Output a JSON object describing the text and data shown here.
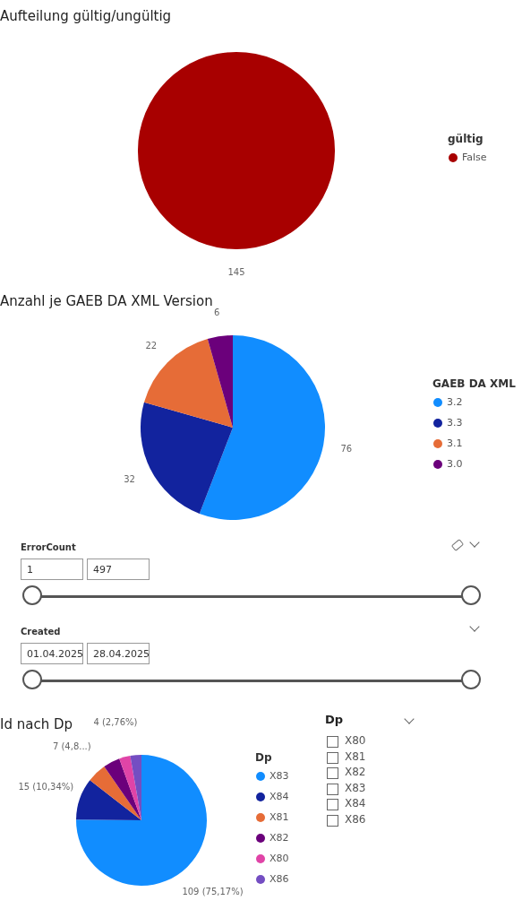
{
  "chart_data": [
    {
      "type": "pie",
      "title": "Aufteilung gültig/ungültig",
      "legend_title": "gültig",
      "legend": "right",
      "data_labels": true,
      "categories": [
        "False"
      ],
      "values": [
        145
      ],
      "colors": [
        "#a80000"
      ]
    },
    {
      "type": "pie",
      "title": "Anzahl je GAEB DA XML Version",
      "legend_title": "GAEB DA XML",
      "legend": "right",
      "data_labels": true,
      "categories": [
        "3.2",
        "3.3",
        "3.1",
        "3.0"
      ],
      "values": [
        76,
        32,
        22,
        6
      ],
      "colors": [
        "#118dff",
        "#12239e",
        "#e66c37",
        "#6b007b"
      ]
    },
    {
      "type": "other",
      "annotations": [
        "ErrorCount",
        "1",
        "497",
        "Created",
        "01.04.2025",
        "28.04.2025"
      ]
    },
    {
      "type": "pie",
      "title": "Id nach Dp",
      "legend_title": "Dp",
      "legend": "right",
      "categories": [
        "X83",
        "X84",
        "X81",
        "X82",
        "X80",
        "X86"
      ],
      "values": [
        109,
        15,
        7,
        6,
        4,
        4
      ],
      "value_labels": [
        "109 (75,17%)",
        "15 (10,34%)",
        "7 (4,8...)",
        null,
        "4 (2,76%)",
        null
      ],
      "colors": [
        "#118dff",
        "#12239e",
        "#e66c37",
        "#6b007b",
        "#e044a7",
        "#744ec2"
      ]
    },
    {
      "type": "other",
      "title": "Dp",
      "annotations": [
        "X80",
        "X81",
        "X82",
        "X83",
        "X84",
        "X86"
      ]
    }
  ]
}
